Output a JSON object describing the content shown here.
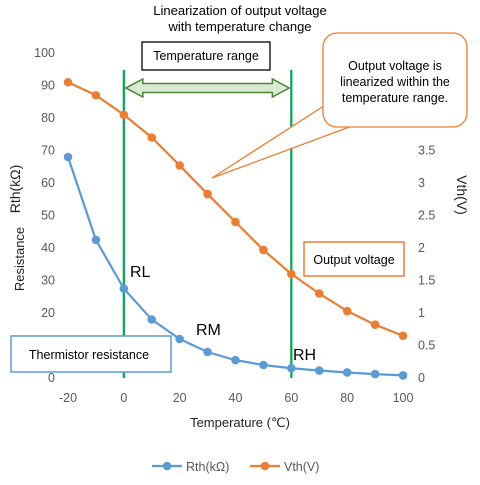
{
  "header": {
    "line1": "Linearization of output voltage",
    "line2": "with temperature change"
  },
  "callouts": {
    "temperature_range": "Temperature range",
    "linearized_line1": "Output voltage is",
    "linearized_line2": "linearized within the",
    "linearized_line3": "temperature range.",
    "output_voltage": "Output voltage",
    "thermistor_resistance": "Thermistor resistance"
  },
  "region_labels": {
    "rl": "RL",
    "rm": "RM",
    "rh": "RH"
  },
  "colors": {
    "rth": "#5b9bd5",
    "vth": "#ed7d31",
    "range_lines": "#00a651",
    "arrow_fill": "#d9ead3",
    "arrow_stroke": "#548235",
    "callout_border": "#ed7d31",
    "rth_box_border": "#5b9bd5"
  },
  "chart_data": {
    "type": "line",
    "x": [
      -20,
      -10,
      0,
      10,
      20,
      30,
      40,
      50,
      60,
      70,
      80,
      90,
      100
    ],
    "xlim": [
      -20,
      100
    ],
    "xticks": [
      -20,
      0,
      20,
      40,
      60,
      80,
      100
    ],
    "xlabel": "Temperature (℃)",
    "y_left": {
      "label_line1": "Resistance",
      "label_line2": "Rth(kΩ)",
      "lim": [
        0,
        100
      ],
      "ticks": [
        0,
        10,
        20,
        30,
        40,
        50,
        60,
        70,
        80,
        90,
        100
      ]
    },
    "y_right": {
      "label": "Vth(V)",
      "lim": [
        0,
        5
      ],
      "ticks": [
        "0",
        "0.5",
        "1",
        "1.5",
        "2",
        "2.5",
        "3",
        "3.5"
      ]
    },
    "series": [
      {
        "name": "Rth(kΩ)",
        "axis": "left",
        "values": [
          68,
          42.5,
          27.5,
          18,
          12,
          8,
          5.5,
          4,
          3,
          2.3,
          1.7,
          1.2,
          0.8
        ]
      },
      {
        "name": "Vth(V)",
        "axis": "right",
        "values": [
          4.55,
          4.35,
          4.05,
          3.7,
          3.27,
          2.83,
          2.4,
          1.97,
          1.6,
          1.3,
          1.03,
          0.82,
          0.65
        ]
      }
    ],
    "range_markers": [
      0,
      60
    ],
    "grid": false,
    "legend": "bottom"
  }
}
